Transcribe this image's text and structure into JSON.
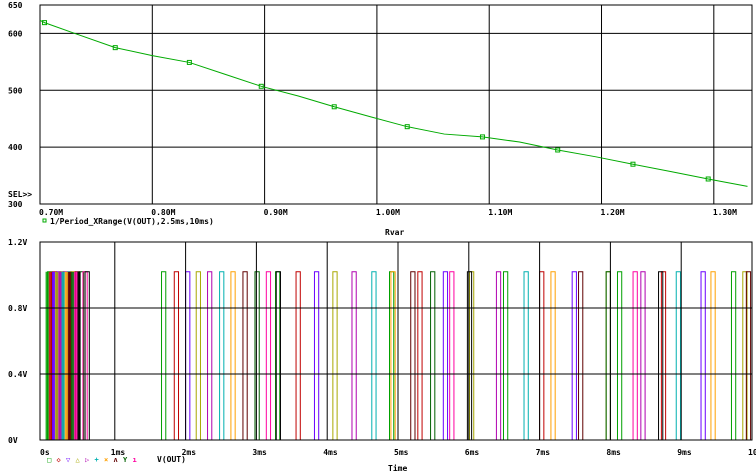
{
  "chart_data": [
    {
      "type": "line",
      "title": "",
      "xlabel": "Rvar",
      "ylabel": "",
      "xlim": [
        0.7,
        1.334
      ],
      "ylim": [
        300,
        650
      ],
      "grid": true,
      "x_ticks": [
        0.7,
        0.8,
        0.9,
        1.0,
        1.1,
        1.2,
        1.3
      ],
      "x_tick_labels": [
        "0.70M",
        "0.80M",
        "0.90M",
        "1.00M",
        "1.10M",
        "1.20M",
        "1.30M"
      ],
      "y_ticks": [
        300,
        400,
        500,
        600,
        650
      ],
      "y_tick_labels": [
        "300",
        "400",
        "500",
        "600",
        "650"
      ],
      "sel_label": "SEL>>",
      "color": "#00aa00",
      "series": [
        {
          "name": "1/Period_XRange(V(OUT),2.5ms,10ms)",
          "x": [
            0.7,
            0.704,
            0.731,
            0.767,
            0.8,
            0.833,
            0.865,
            0.897,
            0.93,
            0.962,
            0.995,
            1.027,
            1.06,
            1.094,
            1.127,
            1.161,
            1.195,
            1.228,
            1.262,
            1.295,
            1.33
          ],
          "y": [
            623,
            619,
            600,
            575,
            561,
            549,
            528,
            507,
            490,
            471,
            453,
            436,
            423,
            418,
            409,
            395,
            383,
            370,
            357,
            344,
            331
          ],
          "markers_at": [
            1,
            3,
            5,
            7,
            9,
            11,
            13,
            15,
            17,
            19
          ]
        }
      ]
    },
    {
      "type": "line",
      "title": "",
      "xlabel": "Time",
      "ylabel": "",
      "xlim": [
        0,
        10
      ],
      "ylim": [
        0,
        1.2
      ],
      "grid": true,
      "x_ticks": [
        0,
        1,
        2,
        3,
        4,
        5,
        6,
        7,
        8,
        9,
        10
      ],
      "x_tick_labels": [
        "0s",
        "1ms",
        "2ms",
        "3ms",
        "4ms",
        "5ms",
        "6ms",
        "7ms",
        "8ms",
        "9ms",
        "10ms"
      ],
      "y_ticks": [
        0,
        0.4,
        0.8,
        1.2
      ],
      "y_tick_labels": [
        "0V",
        "0.4V",
        "0.8V",
        "1.2V"
      ],
      "legend_label": "V(OUT)",
      "legend_position": "bottom-left",
      "pulse_high": 1.02,
      "series": [
        {
          "name": "V(OUT) 1",
          "color": "#00a000",
          "marker": "square",
          "period_ms": 1.61,
          "start_ms": 0.05
        },
        {
          "name": "V(OUT) 2",
          "color": "#c00000",
          "marker": "diamond",
          "period_ms": 1.72,
          "start_ms": 0.12
        },
        {
          "name": "V(OUT) 3",
          "color": "#6a00ff",
          "marker": "triangle-down",
          "period_ms": 1.82,
          "start_ms": 0.18
        },
        {
          "name": "V(OUT) 4",
          "color": "#a8a800",
          "marker": "triangle-up",
          "period_ms": 1.93,
          "start_ms": 0.22
        },
        {
          "name": "V(OUT) 5",
          "color": "#b000b0",
          "marker": "triangle-right",
          "period_ms": 2.04,
          "start_ms": 0.27
        },
        {
          "name": "V(OUT) 6",
          "color": "#00b0b0",
          "marker": "plus",
          "period_ms": 2.15,
          "start_ms": 0.33
        },
        {
          "name": "V(OUT) 7",
          "color": "#ffa000",
          "marker": "x",
          "period_ms": 2.26,
          "start_ms": 0.38
        },
        {
          "name": "V(OUT) 8",
          "color": "#600000",
          "marker": "caret-up",
          "period_ms": 2.37,
          "start_ms": 0.44
        },
        {
          "name": "V(OUT) 9",
          "color": "#006000",
          "marker": "y",
          "period_ms": 2.48,
          "start_ms": 0.5
        },
        {
          "name": "V(OUT) 10",
          "color": "#ff00a0",
          "marker": "tick",
          "period_ms": 2.59,
          "start_ms": 0.55
        },
        {
          "name": "V(OUT) 11",
          "color": "#000000",
          "marker": "none",
          "period_ms": 2.7,
          "start_ms": 0.58
        }
      ]
    }
  ]
}
